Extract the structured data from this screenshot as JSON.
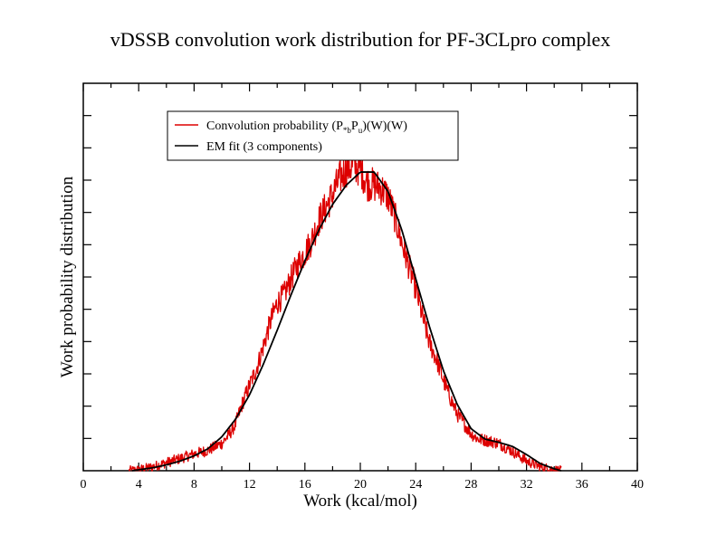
{
  "chart_data": {
    "type": "line",
    "title": "vDSSB convolution work distribution for PF-3CLpro complex",
    "xlabel": "Work (kcal/mol)",
    "ylabel": "Work probability distribution",
    "xlim": [
      0,
      40
    ],
    "ylim": [
      0,
      0.12
    ],
    "x_ticks": [
      0,
      4,
      8,
      12,
      16,
      20,
      24,
      28,
      32,
      36,
      40
    ],
    "x_tick_labels": [
      "0",
      "4",
      "8",
      "12",
      "16",
      "20",
      "24",
      "28",
      "32",
      "36",
      "40"
    ],
    "y_ticks": [
      0.01,
      0.02,
      0.03,
      0.04,
      0.05,
      0.06,
      0.07,
      0.08,
      0.09,
      0.1,
      0.11
    ],
    "y_tick_labels_shown": false,
    "grid": false,
    "legend_position": "top-left",
    "series": [
      {
        "name": "Convolution probability (P*bPu)(W)(W)",
        "legend_parts": {
          "a": "Convolution probability (P",
          "sub1": "*b",
          "b": "P",
          "sub2": "u",
          "c": ")(W)(W)"
        },
        "color": "#dd0000",
        "style": "noisy",
        "x": [
          3.3,
          4,
          5,
          6,
          7,
          8,
          9,
          10,
          10.5,
          11,
          11.5,
          12,
          12.5,
          13,
          13.5,
          14,
          14.5,
          15,
          15.5,
          16,
          16.5,
          17,
          17.5,
          18,
          18.5,
          19,
          19.5,
          20,
          20.5,
          21,
          21.5,
          22,
          22.5,
          23,
          23.5,
          24,
          24.5,
          25,
          25.5,
          26,
          26.5,
          27,
          27.5,
          28,
          28.5,
          29,
          30,
          31,
          32,
          33,
          34,
          34.5
        ],
        "y": [
          0.0,
          0.0003,
          0.0012,
          0.0025,
          0.0038,
          0.0052,
          0.0063,
          0.0085,
          0.011,
          0.0145,
          0.021,
          0.0265,
          0.0315,
          0.0385,
          0.046,
          0.052,
          0.0545,
          0.0595,
          0.064,
          0.0675,
          0.0715,
          0.0775,
          0.0815,
          0.0855,
          0.0905,
          0.0935,
          0.0945,
          0.0935,
          0.089,
          0.0885,
          0.0875,
          0.085,
          0.0785,
          0.0705,
          0.0635,
          0.0565,
          0.0475,
          0.0395,
          0.0345,
          0.028,
          0.0225,
          0.0175,
          0.0145,
          0.0115,
          0.0098,
          0.0095,
          0.0085,
          0.006,
          0.003,
          0.0012,
          0.0003,
          0.0
        ]
      },
      {
        "name": "EM fit (3 components)",
        "color": "#000000",
        "style": "smooth",
        "x": [
          3.5,
          4,
          5,
          6,
          7,
          8,
          9,
          10,
          11,
          12,
          13,
          14,
          15,
          16,
          17,
          18,
          19,
          20,
          21,
          22,
          23,
          24,
          25,
          26,
          27,
          28,
          29,
          30,
          31,
          32,
          33,
          34,
          34.5
        ],
        "y": [
          0.0,
          0.0003,
          0.0009,
          0.0018,
          0.003,
          0.0046,
          0.0068,
          0.0105,
          0.016,
          0.0235,
          0.033,
          0.0435,
          0.0545,
          0.065,
          0.0745,
          0.0825,
          0.0885,
          0.0925,
          0.0925,
          0.0865,
          0.0745,
          0.0595,
          0.0445,
          0.031,
          0.0205,
          0.013,
          0.0098,
          0.0088,
          0.0075,
          0.005,
          0.0022,
          0.0006,
          0.0
        ]
      }
    ]
  }
}
